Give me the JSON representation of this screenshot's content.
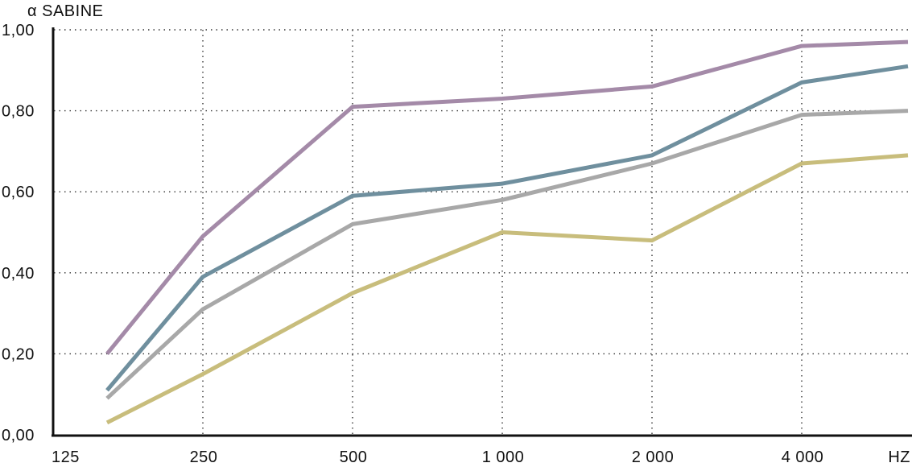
{
  "chart_data": {
    "type": "line",
    "ylabel": "α SABINE",
    "xlabel": "HZ",
    "ylim": [
      0,
      1
    ],
    "grid": true,
    "categories": [
      "125",
      "250",
      "500",
      "1 000",
      "2 000",
      "4 000"
    ],
    "y_ticks": [
      "0,00",
      "0,20",
      "0,40",
      "0,60",
      "0,80",
      "1,00"
    ],
    "y_tick_values": [
      0,
      0.2,
      0.4,
      0.6,
      0.8,
      1.0
    ],
    "series": [
      {
        "color": "#a48aa8",
        "x": [
          125,
          250,
          500,
          1000,
          2000,
          4000,
          5657
        ],
        "values": [
          0.2,
          0.49,
          0.81,
          0.83,
          0.86,
          0.96,
          0.97
        ]
      },
      {
        "color": "#6f8f9e",
        "x": [
          125,
          250,
          500,
          1000,
          2000,
          4000,
          5657
        ],
        "values": [
          0.11,
          0.39,
          0.59,
          0.62,
          0.69,
          0.87,
          0.91
        ]
      },
      {
        "color": "#a8a8a8",
        "x": [
          125,
          250,
          500,
          1000,
          2000,
          4000,
          5657
        ],
        "values": [
          0.09,
          0.31,
          0.52,
          0.58,
          0.67,
          0.79,
          0.8
        ]
      },
      {
        "color": "#c8bd7c",
        "x": [
          125,
          250,
          500,
          1000,
          2000,
          4000,
          5657
        ],
        "values": [
          0.03,
          0.15,
          0.35,
          0.5,
          0.48,
          0.67,
          0.69
        ]
      }
    ]
  }
}
